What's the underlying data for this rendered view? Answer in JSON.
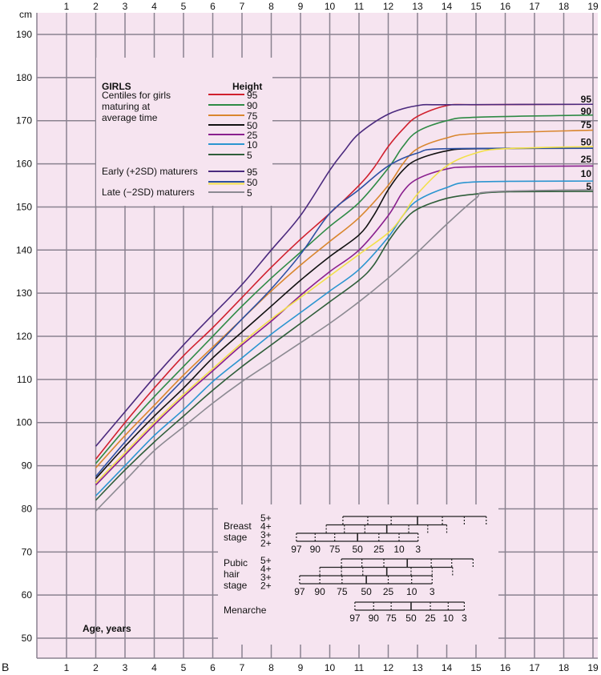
{
  "chart_data": {
    "type": "line",
    "figure_letter": "B",
    "title": "GIRLS",
    "measure": "Height",
    "ylabel": "cm",
    "xlabel": "Age, years",
    "xlim": [
      0,
      19
    ],
    "ylim": [
      45,
      195
    ],
    "x_ticks": [
      1,
      2,
      3,
      4,
      5,
      6,
      7,
      8,
      9,
      10,
      11,
      12,
      13,
      14,
      15,
      16,
      17,
      18,
      19
    ],
    "y_ticks": [
      50,
      60,
      70,
      80,
      90,
      100,
      110,
      120,
      130,
      140,
      150,
      160,
      170,
      180,
      190
    ],
    "grid": true,
    "legend": {
      "placement": "top-left",
      "average_caption": [
        "Centiles for girls",
        "maturing at",
        "average time"
      ],
      "early_caption": "Early (+2SD) maturers",
      "late_caption": "Late (−2SD) maturers"
    },
    "series": [
      {
        "name": "95",
        "group": "average",
        "color": "#d0202e",
        "points": [
          [
            2,
            91.5
          ],
          [
            3,
            100
          ],
          [
            4,
            108
          ],
          [
            5,
            115.5
          ],
          [
            6,
            122
          ],
          [
            7,
            129
          ],
          [
            8,
            136
          ],
          [
            9,
            142.5
          ],
          [
            10,
            148.5
          ],
          [
            11,
            155
          ],
          [
            11.5,
            159
          ],
          [
            12,
            164
          ],
          [
            12.5,
            168
          ],
          [
            13,
            171
          ],
          [
            14,
            173.5
          ],
          [
            15,
            173.7
          ],
          [
            19,
            173.8
          ]
        ]
      },
      {
        "name": "90",
        "group": "average",
        "color": "#2e8a45",
        "points": [
          [
            2,
            90.5
          ],
          [
            3,
            98.5
          ],
          [
            4,
            106
          ],
          [
            5,
            113
          ],
          [
            6,
            120
          ],
          [
            7,
            127
          ],
          [
            8,
            133.5
          ],
          [
            9,
            139.5
          ],
          [
            10,
            145.5
          ],
          [
            11,
            151
          ],
          [
            12,
            159
          ],
          [
            12.5,
            164
          ],
          [
            13,
            167.5
          ],
          [
            14,
            170
          ],
          [
            15,
            170.8
          ],
          [
            19,
            171.3
          ]
        ]
      },
      {
        "name": "75",
        "group": "average",
        "color": "#d9862e",
        "points": [
          [
            2,
            89.5
          ],
          [
            3,
            97
          ],
          [
            4,
            104
          ],
          [
            5,
            111
          ],
          [
            6,
            117.5
          ],
          [
            7,
            124
          ],
          [
            8,
            130.5
          ],
          [
            9,
            136.5
          ],
          [
            10,
            142
          ],
          [
            11,
            147.5
          ],
          [
            12,
            155
          ],
          [
            12.5,
            160
          ],
          [
            13,
            163.5
          ],
          [
            14,
            166
          ],
          [
            15,
            167
          ],
          [
            19,
            167.8
          ]
        ]
      },
      {
        "name": "50",
        "group": "average",
        "color": "#111111",
        "points": [
          [
            2,
            87
          ],
          [
            3,
            94.5
          ],
          [
            4,
            101.5
          ],
          [
            5,
            108
          ],
          [
            6,
            115
          ],
          [
            7,
            121
          ],
          [
            8,
            127
          ],
          [
            9,
            133
          ],
          [
            10,
            138.5
          ],
          [
            11,
            143.5
          ],
          [
            11.5,
            148
          ],
          [
            12,
            154
          ],
          [
            12.5,
            158.5
          ],
          [
            13,
            161
          ],
          [
            14,
            163
          ],
          [
            15,
            163.5
          ],
          [
            19,
            163.6
          ]
        ]
      },
      {
        "name": "25",
        "group": "average",
        "color": "#8a1f8e",
        "points": [
          [
            2,
            85.5
          ],
          [
            3,
            92.5
          ],
          [
            4,
            99.5
          ],
          [
            5,
            106
          ],
          [
            6,
            112
          ],
          [
            7,
            118
          ],
          [
            8,
            123.5
          ],
          [
            9,
            129.5
          ],
          [
            10,
            135
          ],
          [
            11,
            140
          ],
          [
            12,
            148
          ],
          [
            12.5,
            153.5
          ],
          [
            13,
            156.5
          ],
          [
            14,
            158.8
          ],
          [
            15,
            159.3
          ],
          [
            19,
            159.5
          ]
        ]
      },
      {
        "name": "10",
        "group": "average",
        "color": "#2b95d0",
        "points": [
          [
            2,
            83
          ],
          [
            3,
            90
          ],
          [
            4,
            97
          ],
          [
            5,
            103
          ],
          [
            6,
            109.5
          ],
          [
            7,
            115
          ],
          [
            8,
            120.5
          ],
          [
            9,
            125.5
          ],
          [
            10,
            130.5
          ],
          [
            11,
            135.5
          ],
          [
            12,
            143
          ],
          [
            12.5,
            148
          ],
          [
            13,
            151.5
          ],
          [
            14,
            154.5
          ],
          [
            15,
            155.8
          ],
          [
            19,
            156
          ]
        ]
      },
      {
        "name": "5",
        "group": "average",
        "color": "#2f5e3a",
        "points": [
          [
            2,
            82
          ],
          [
            3,
            89
          ],
          [
            4,
            95.5
          ],
          [
            5,
            101.5
          ],
          [
            6,
            107.5
          ],
          [
            7,
            113
          ],
          [
            8,
            118
          ],
          [
            9,
            123
          ],
          [
            10,
            128
          ],
          [
            11,
            133
          ],
          [
            11.5,
            136.5
          ],
          [
            12,
            142
          ],
          [
            12.5,
            146.5
          ],
          [
            13,
            149.5
          ],
          [
            14,
            152
          ],
          [
            15,
            153
          ],
          [
            16,
            153.5
          ],
          [
            19,
            153.6
          ]
        ]
      },
      {
        "name": "95",
        "group": "early",
        "color": "#4b2a7e",
        "points": [
          [
            2,
            94.5
          ],
          [
            3,
            102.5
          ],
          [
            4,
            110.5
          ],
          [
            5,
            118
          ],
          [
            6,
            125
          ],
          [
            7,
            132
          ],
          [
            8,
            140
          ],
          [
            9,
            148
          ],
          [
            10,
            158.5
          ],
          [
            10.5,
            163
          ],
          [
            11,
            167
          ],
          [
            12,
            171.5
          ],
          [
            13,
            173.5
          ],
          [
            14,
            173.7
          ],
          [
            19,
            173.8
          ]
        ]
      },
      {
        "name": "50",
        "group": "early",
        "color": "#2c4fa3",
        "points": [
          [
            2,
            87.5
          ],
          [
            3,
            95.5
          ],
          [
            4,
            103
          ],
          [
            5,
            110
          ],
          [
            6,
            117
          ],
          [
            7,
            124
          ],
          [
            8,
            131
          ],
          [
            9,
            139
          ],
          [
            10,
            148.5
          ],
          [
            11,
            154
          ],
          [
            12,
            159.5
          ],
          [
            13,
            162.5
          ],
          [
            14,
            163.5
          ],
          [
            19,
            163.6
          ]
        ]
      },
      {
        "name": "50",
        "group": "late",
        "color": "#f2e04a",
        "points": [
          [
            2,
            86
          ],
          [
            3,
            93
          ],
          [
            4,
            100
          ],
          [
            5,
            106.5
          ],
          [
            6,
            112.5
          ],
          [
            7,
            118.5
          ],
          [
            8,
            124
          ],
          [
            9,
            129
          ],
          [
            10,
            134
          ],
          [
            11,
            139
          ],
          [
            12,
            144
          ],
          [
            12.5,
            148
          ],
          [
            13,
            153
          ],
          [
            14,
            159.5
          ],
          [
            15,
            162.5
          ],
          [
            16,
            163.5
          ],
          [
            19,
            164
          ]
        ]
      },
      {
        "name": "5",
        "group": "late",
        "color": "#8c8a92",
        "points": [
          [
            2,
            79.5
          ],
          [
            3,
            86.5
          ],
          [
            4,
            93.5
          ],
          [
            5,
            99
          ],
          [
            6,
            104.5
          ],
          [
            7,
            109.5
          ],
          [
            8,
            114
          ],
          [
            9,
            118.5
          ],
          [
            10,
            123
          ],
          [
            11,
            128
          ],
          [
            12,
            133.5
          ],
          [
            13,
            139.5
          ],
          [
            14,
            146
          ],
          [
            15,
            152
          ],
          [
            15.5,
            153.5
          ],
          [
            19,
            154
          ]
        ]
      }
    ],
    "end_labels": [
      {
        "text": "95",
        "y": 175
      },
      {
        "text": "90",
        "y": 172.2
      },
      {
        "text": "75",
        "y": 169
      },
      {
        "text": "50",
        "y": 165
      },
      {
        "text": "25",
        "y": 161
      },
      {
        "text": "10",
        "y": 157.7
      },
      {
        "text": "5",
        "y": 154.7
      }
    ],
    "puberty_stages": {
      "percentiles": [
        "97",
        "90",
        "75",
        "50",
        "25",
        "10",
        "3"
      ],
      "groups": [
        {
          "label": [
            "Breast",
            "stage"
          ],
          "stages": [
            "5+",
            "4+",
            "3+",
            "2+"
          ],
          "rows": [
            [
              10.45,
              11.3,
              12.1,
              13.0,
              13.85,
              14.6,
              15.35
            ],
            [
              9.88,
              10.5,
              11.2,
              11.95,
              12.7,
              13.35,
              14.0
            ],
            [
              8.86,
              9.5,
              10.17,
              10.95,
              11.68,
              12.37,
              13.02
            ]
          ]
        },
        {
          "label": [
            "Pubic",
            "hair",
            "stage"
          ],
          "stages": [
            "5+",
            "4+",
            "3+",
            "2+"
          ],
          "rows": [
            [
              10.4,
              11.1,
              11.85,
              12.65,
              13.47,
              14.17,
              14.9
            ],
            [
              9.66,
              10.4,
              11.13,
              11.95,
              12.78,
              13.5,
              14.2
            ],
            [
              8.97,
              9.66,
              10.42,
              11.25,
              12.0,
              12.8,
              13.5
            ]
          ]
        },
        {
          "label": [
            "Menarche"
          ],
          "stages": [],
          "rows": [
            [
              10.86,
              11.5,
              12.1,
              12.78,
              13.44,
              14.05,
              14.6
            ]
          ]
        }
      ]
    }
  }
}
